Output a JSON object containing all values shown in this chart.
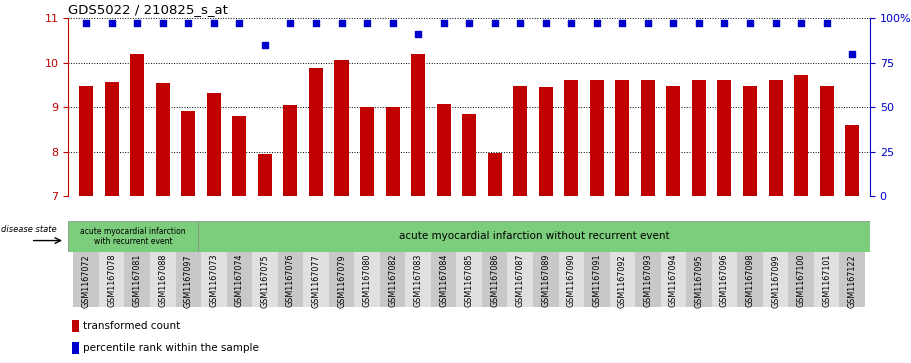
{
  "title": "GDS5022 / 210825_s_at",
  "samples": [
    "GSM1167072",
    "GSM1167078",
    "GSM1167081",
    "GSM1167088",
    "GSM1167097",
    "GSM1167073",
    "GSM1167074",
    "GSM1167075",
    "GSM1167076",
    "GSM1167077",
    "GSM1167079",
    "GSM1167080",
    "GSM1167082",
    "GSM1167083",
    "GSM1167084",
    "GSM1167085",
    "GSM1167086",
    "GSM1167087",
    "GSM1167089",
    "GSM1167090",
    "GSM1167091",
    "GSM1167092",
    "GSM1167093",
    "GSM1167094",
    "GSM1167095",
    "GSM1167096",
    "GSM1167098",
    "GSM1167099",
    "GSM1167100",
    "GSM1167101",
    "GSM1167122"
  ],
  "bar_values": [
    9.47,
    9.57,
    10.2,
    9.54,
    8.92,
    9.32,
    8.8,
    7.95,
    9.05,
    9.88,
    10.05,
    9.0,
    9.0,
    10.2,
    9.07,
    8.85,
    7.97,
    9.47,
    9.45,
    9.62,
    9.62,
    9.62,
    9.62,
    9.47,
    9.62,
    9.62,
    9.47,
    9.62,
    9.72,
    9.47,
    8.6
  ],
  "percentile_pct": [
    97,
    97,
    97,
    97,
    97,
    97,
    97,
    85,
    97,
    97,
    97,
    97,
    97,
    91,
    97,
    97,
    97,
    97,
    97,
    97,
    97,
    97,
    97,
    97,
    97,
    97,
    97,
    97,
    97,
    97,
    80
  ],
  "bar_color": "#c00000",
  "dot_color": "#0000cd",
  "ylim_left": [
    7,
    11
  ],
  "ylim_right": [
    0,
    100
  ],
  "yticks_left": [
    7,
    8,
    9,
    10,
    11
  ],
  "yticks_right": [
    0,
    25,
    50,
    75,
    100
  ],
  "ytick_labels_right": [
    "0",
    "25",
    "50",
    "75",
    "100%"
  ],
  "group1_label": "acute myocardial infarction\nwith recurrent event",
  "group2_label": "acute myocardial infarction without recurrent event",
  "disease_state_label": "disease state",
  "legend_bar_label": "transformed count",
  "legend_dot_label": "percentile rank within the sample",
  "group1_count": 5,
  "band_color": "#7ccd7c",
  "tick_bg_even": "#c8c8c8",
  "tick_bg_odd": "#e0e0e0"
}
